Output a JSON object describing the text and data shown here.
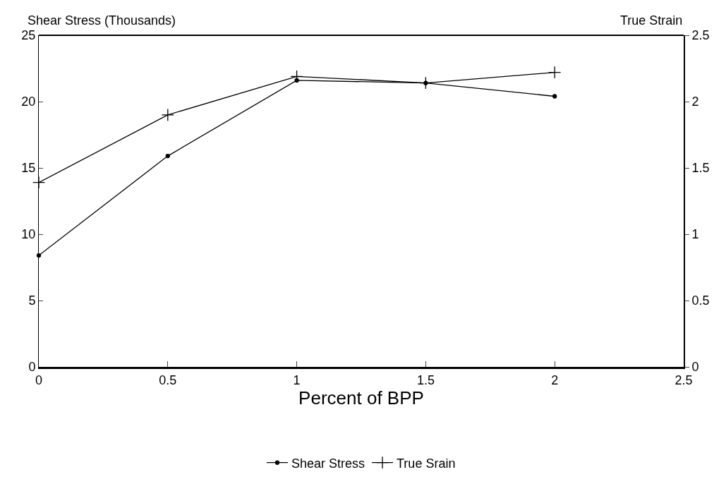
{
  "chart_data": {
    "type": "line",
    "xlabel": "Percent of BPP",
    "ylabel": "Shear Stress (Thousands)",
    "y2label": "True Strain",
    "x": [
      0,
      0.5,
      1,
      1.5,
      2
    ],
    "series": [
      {
        "name": "Shear Stress",
        "color": "#000000",
        "values": [
          8.4,
          15.9,
          21.6,
          21.4,
          20.4
        ],
        "marker": "circle"
      },
      {
        "name": "True Srain",
        "color": "#000000",
        "values": [
          1.39,
          1.9,
          2.19,
          2.14,
          2.22
        ],
        "marker": "cross",
        "axis": "y2"
      }
    ],
    "xlim": [
      0,
      2.5
    ],
    "xticks": [
      0,
      0.5,
      1,
      1.5,
      2,
      2.5
    ],
    "ylim": [
      0,
      25
    ],
    "yticks": [
      0,
      5,
      10,
      15,
      20,
      25
    ],
    "y2lim": [
      0,
      2.5
    ],
    "y2ticks": [
      0,
      0.5,
      1,
      1.5,
      2,
      2.5
    ],
    "legend": "bottom",
    "line_style": "solid"
  }
}
